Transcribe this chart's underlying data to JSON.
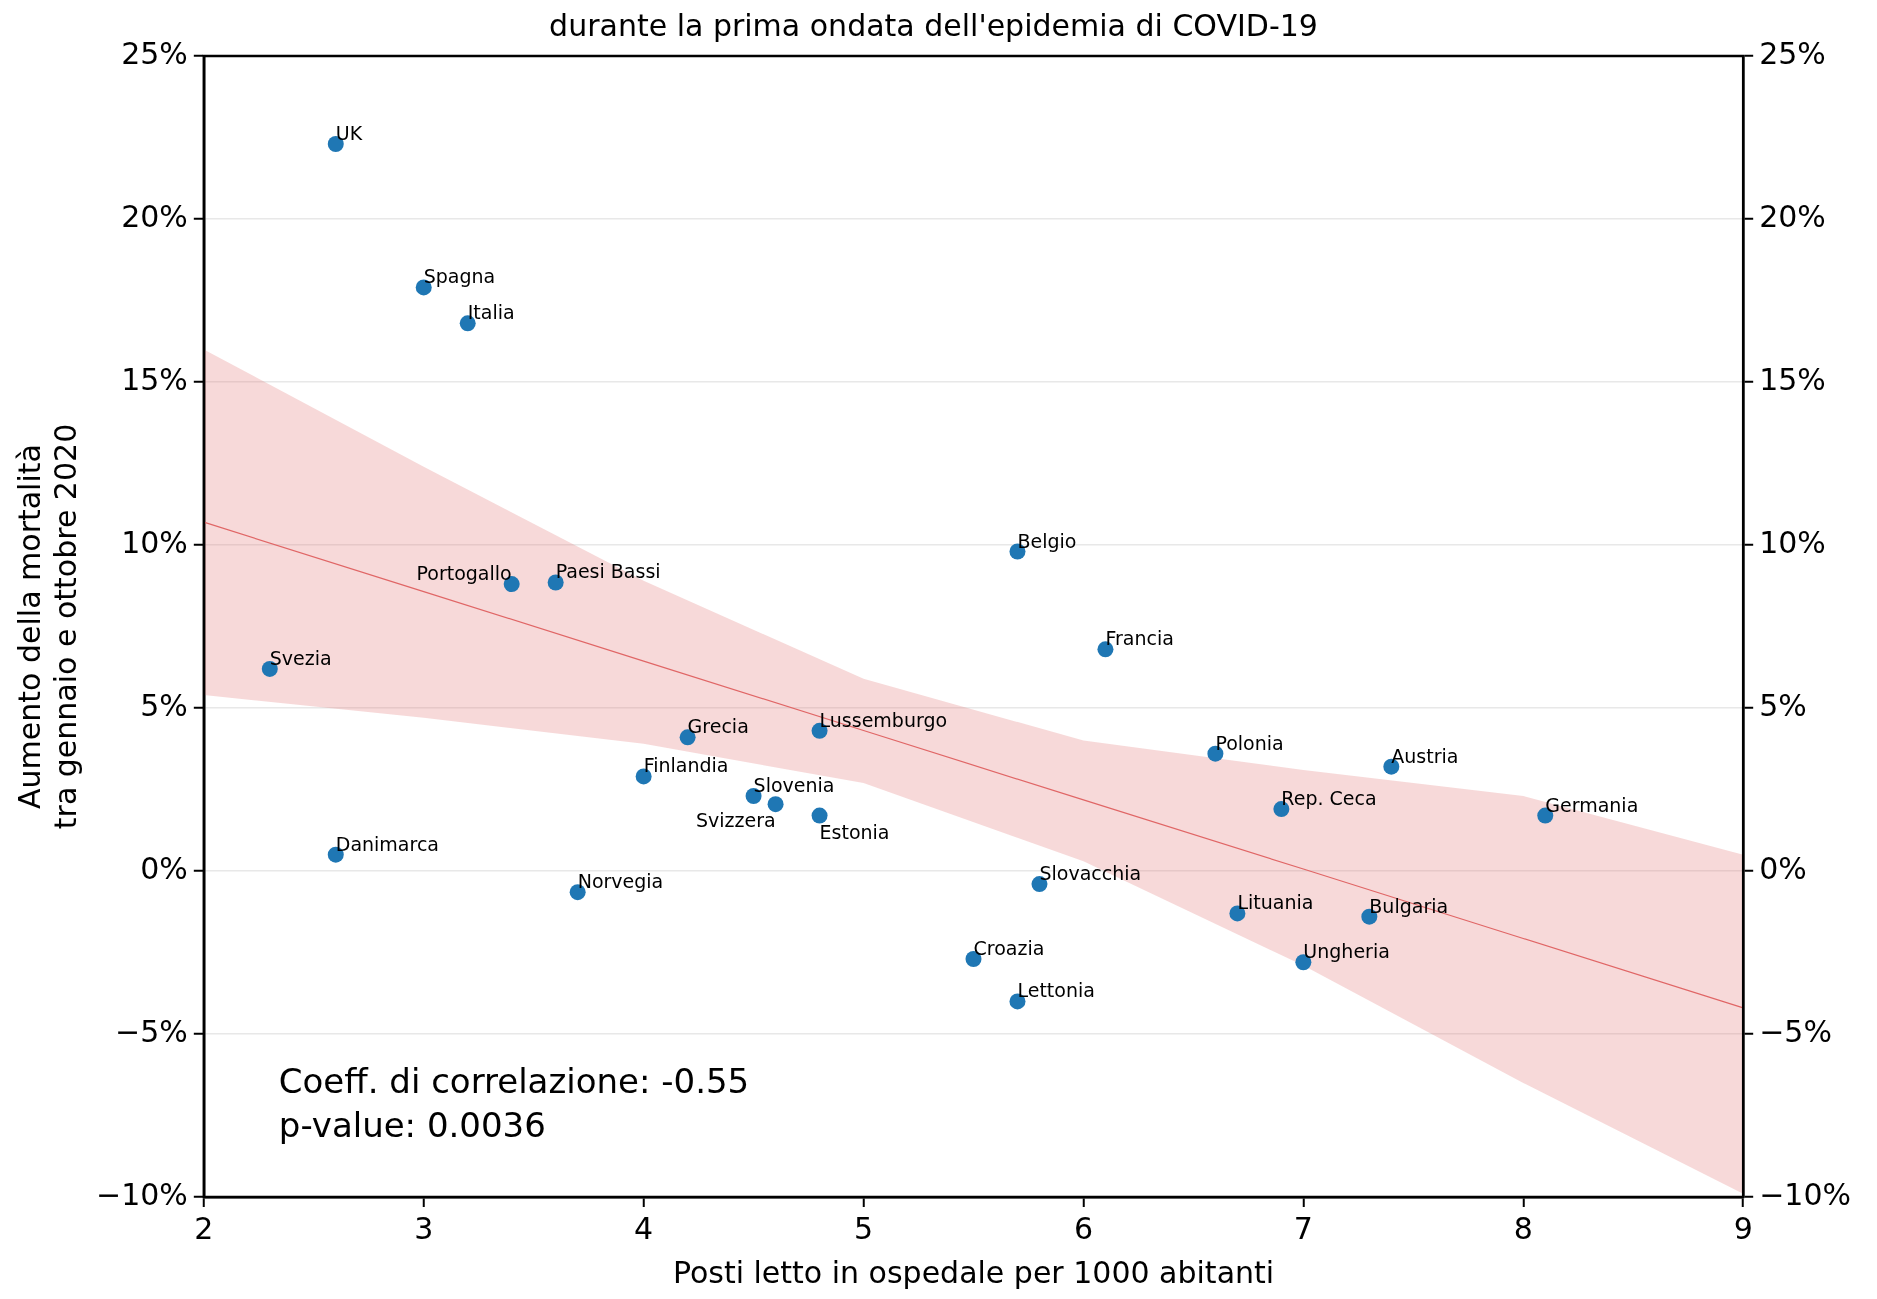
{
  "chart_data": {
    "type": "scatter",
    "title": "durante la prima ondata dell'epidemia di COVID-19",
    "xlabel": "Posti letto in ospedale per 1000 abitanti",
    "ylabel": "Aumento della mortalità\ntra gennaio e ottobre 2020",
    "series": [
      {
        "marker": "circle",
        "color": "#1f77b4",
        "x": [
          2.6,
          3.0,
          3.2,
          3.4,
          3.6,
          2.3,
          5.7,
          6.1,
          4.2,
          4.8,
          4.0,
          4.5,
          4.6,
          4.8,
          2.6,
          3.7,
          6.6,
          7.4,
          6.9,
          8.1,
          5.8,
          6.7,
          7.3,
          5.5,
          7.0,
          5.7
        ],
        "values": [
          22.3,
          17.9,
          16.8,
          8.8,
          8.85,
          6.2,
          9.8,
          6.8,
          4.1,
          4.3,
          2.9,
          2.3,
          2.05,
          1.7,
          0.5,
          -0.65,
          3.6,
          3.2,
          1.9,
          1.7,
          -0.4,
          -1.3,
          -1.4,
          -2.7,
          -2.8,
          -4.0
        ]
      },
      {
        "type": "line",
        "color": "#e06666",
        "x": [
          2,
          3,
          4,
          5,
          6,
          7,
          8,
          9
        ],
        "values": [
          10.7,
          8.57,
          6.44,
          4.31,
          2.18,
          0.06,
          -2.07,
          -4.2
        ],
        "lower": [
          5.4,
          4.7,
          3.9,
          2.7,
          0.3,
          -2.9,
          -6.5,
          -9.9
        ],
        "upper": [
          16.0,
          12.4,
          8.9,
          5.9,
          4.0,
          3.1,
          2.3,
          0.5
        ]
      }
    ],
    "xlim": [
      2,
      9
    ],
    "xticks": [
      2,
      3,
      4,
      5,
      6,
      7,
      8,
      9
    ],
    "ylim": [
      -10,
      25
    ],
    "yticks": [
      {
        "value": -10,
        "label": "−10%"
      },
      {
        "value": -5,
        "label": "−5%"
      },
      {
        "value": 0,
        "label": "0%"
      },
      {
        "value": 5,
        "label": "5%"
      },
      {
        "value": 10,
        "label": "10%"
      },
      {
        "value": 15,
        "label": "15%"
      },
      {
        "value": 20,
        "label": "20%"
      },
      {
        "value": 25,
        "label": "25%"
      }
    ],
    "y2lim": [
      -10,
      25
    ],
    "y2ticks": [
      {
        "value": -10,
        "label": "−10%"
      },
      {
        "value": -5,
        "label": "−5%"
      },
      {
        "value": 0,
        "label": "0%"
      },
      {
        "value": 5,
        "label": "5%"
      },
      {
        "value": 10,
        "label": "10%"
      },
      {
        "value": 15,
        "label": "15%"
      },
      {
        "value": 20,
        "label": "20%"
      },
      {
        "value": 25,
        "label": "25%"
      }
    ],
    "grid": "y",
    "legend": false,
    "annotations": [
      {
        "text": "UK",
        "x": 2.6,
        "y": 22.3
      },
      {
        "text": "Spagna",
        "x": 3.0,
        "y": 17.9
      },
      {
        "text": "Italia",
        "x": 3.2,
        "y": 16.8
      },
      {
        "text": "Portogallo",
        "x": 3.4,
        "y": 8.8
      },
      {
        "text": "Paesi Bassi",
        "x": 3.6,
        "y": 8.85
      },
      {
        "text": "Svezia",
        "x": 2.3,
        "y": 6.2
      },
      {
        "text": "Belgio",
        "x": 5.7,
        "y": 9.8
      },
      {
        "text": "Francia",
        "x": 6.1,
        "y": 6.8
      },
      {
        "text": "Grecia",
        "x": 4.2,
        "y": 4.1
      },
      {
        "text": "Lussemburgo",
        "x": 4.8,
        "y": 4.3
      },
      {
        "text": "Finlandia",
        "x": 4.0,
        "y": 2.9
      },
      {
        "text": "Slovenia",
        "x": 4.5,
        "y": 2.3
      },
      {
        "text": "Svizzera",
        "x": 4.6,
        "y": 2.05
      },
      {
        "text": "Estonia",
        "x": 4.8,
        "y": 1.7
      },
      {
        "text": "Danimarca",
        "x": 2.6,
        "y": 0.5
      },
      {
        "text": "Norvegia",
        "x": 3.7,
        "y": -0.65
      },
      {
        "text": "Polonia",
        "x": 6.6,
        "y": 3.6
      },
      {
        "text": "Austria",
        "x": 7.4,
        "y": 3.2
      },
      {
        "text": "Rep. Ceca",
        "x": 6.9,
        "y": 1.9
      },
      {
        "text": "Germania",
        "x": 8.1,
        "y": 1.7
      },
      {
        "text": "Slovacchia",
        "x": 5.8,
        "y": -0.4
      },
      {
        "text": "Lituania",
        "x": 6.7,
        "y": -1.3
      },
      {
        "text": "Bulgaria",
        "x": 7.3,
        "y": -1.4
      },
      {
        "text": "Croazia",
        "x": 5.5,
        "y": -2.7
      },
      {
        "text": "Ungheria",
        "x": 7.0,
        "y": -2.8
      },
      {
        "text": "Lettonia",
        "x": 5.7,
        "y": -4.0
      },
      "Coeff. di correlazione: -0.55",
      "p-value: 0.0036"
    ]
  }
}
